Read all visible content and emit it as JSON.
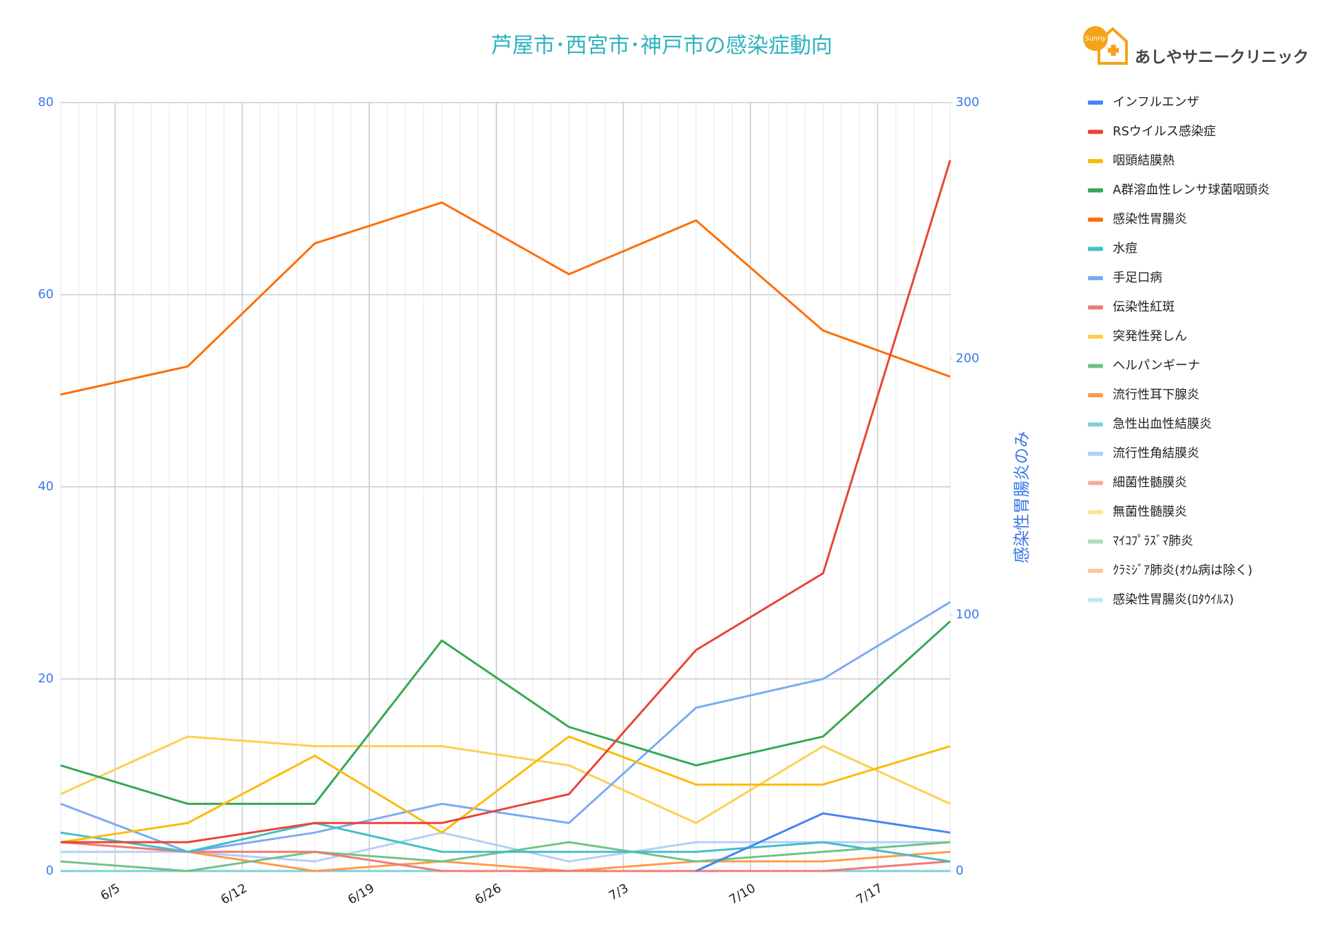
{
  "brand": {
    "badge": "Sunny",
    "name": "あしやサニークリニック"
  },
  "chart_data": {
    "type": "line",
    "title": "芦屋市･西宮市･神戸市の感染症動向",
    "y2label": "感染性胃腸炎のみ",
    "x": [
      "6/2",
      "6/9",
      "6/16",
      "6/23",
      "6/30",
      "7/7",
      "7/14",
      "7/21"
    ],
    "xlim": [
      "6/2",
      "7/21"
    ],
    "xticks": [
      "6/5",
      "6/12",
      "6/19",
      "6/26",
      "7/3",
      "7/10",
      "7/17"
    ],
    "ylim": [
      0,
      80
    ],
    "yticks": [
      0,
      20,
      40,
      60,
      80
    ],
    "y2lim": [
      0,
      300
    ],
    "y2ticks": [
      0,
      100,
      200,
      300
    ],
    "grid": true,
    "legend": "right",
    "series": [
      {
        "name": "インフルエンザ",
        "color": "#4285f4",
        "values": [
          null,
          null,
          null,
          null,
          null,
          0,
          6,
          4
        ]
      },
      {
        "name": "RSウイルス感染症",
        "color": "#ea4335",
        "values": [
          3,
          3,
          5,
          5,
          8,
          23,
          31,
          74
        ]
      },
      {
        "name": "咽頭結膜熱",
        "color": "#fbbc04",
        "values": [
          3,
          5,
          12,
          4,
          14,
          9,
          9,
          13
        ]
      },
      {
        "name": "A群溶血性レンサ球菌咽頭炎",
        "color": "#34a853",
        "values": [
          11,
          7,
          7,
          24,
          15,
          11,
          14,
          26
        ]
      },
      {
        "name": "感染性胃腸炎",
        "color": "#ff6d01",
        "axis": "y2",
        "values": [
          186,
          197,
          245,
          261,
          233,
          254,
          211,
          193
        ]
      },
      {
        "name": "水痘",
        "color": "#46bdc6",
        "values": [
          4,
          2,
          5,
          2,
          2,
          2,
          3,
          1
        ]
      },
      {
        "name": "手足口病",
        "color": "#7baaf7",
        "values": [
          7,
          2,
          4,
          7,
          5,
          17,
          20,
          28
        ]
      },
      {
        "name": "伝染性紅斑",
        "color": "#f07b72",
        "values": [
          3,
          2,
          2,
          0,
          0,
          0,
          0,
          1
        ]
      },
      {
        "name": "突発性発しん",
        "color": "#fcd04f",
        "values": [
          8,
          14,
          13,
          13,
          11,
          5,
          13,
          7
        ]
      },
      {
        "name": "ヘルパンギーナ",
        "color": "#71c287",
        "values": [
          1,
          0,
          2,
          1,
          3,
          1,
          2,
          3
        ]
      },
      {
        "name": "流行性耳下腺炎",
        "color": "#ff994d",
        "values": [
          3,
          2,
          0,
          1,
          0,
          1,
          1,
          2
        ]
      },
      {
        "name": "急性出血性結膜炎",
        "color": "#7ed1d7",
        "values": [
          0,
          0,
          0,
          0,
          0,
          0,
          0,
          0
        ]
      },
      {
        "name": "流行性角結膜炎",
        "color": "#b3cefb",
        "values": [
          2,
          2,
          1,
          4,
          1,
          3,
          3,
          3
        ]
      },
      {
        "name": "細菌性髄膜炎",
        "color": "#f7a7a0",
        "values": [
          0,
          0,
          0,
          0,
          0,
          0,
          0,
          0
        ]
      },
      {
        "name": "無菌性髄膜炎",
        "color": "#fde49b",
        "values": [
          0,
          0,
          0,
          0,
          0,
          0,
          0,
          0
        ]
      },
      {
        "name": "ﾏｲｺﾌﾟﾗｽﾞﾏ肺炎",
        "color": "#aedcba",
        "values": [
          0,
          0,
          0,
          0,
          0,
          0,
          0,
          0
        ]
      },
      {
        "name": "ｸﾗﾐｼﾞｱ肺炎(ｵｳﾑ病は除く)",
        "color": "#ffc599",
        "values": [
          0,
          0,
          0,
          0,
          0,
          0,
          0,
          0
        ]
      },
      {
        "name": "感染性胃腸炎(ﾛﾀｳｲﾙｽ)",
        "color": "#bfe8eb",
        "values": [
          0,
          0,
          0,
          0,
          0,
          0,
          0,
          0
        ]
      }
    ]
  }
}
